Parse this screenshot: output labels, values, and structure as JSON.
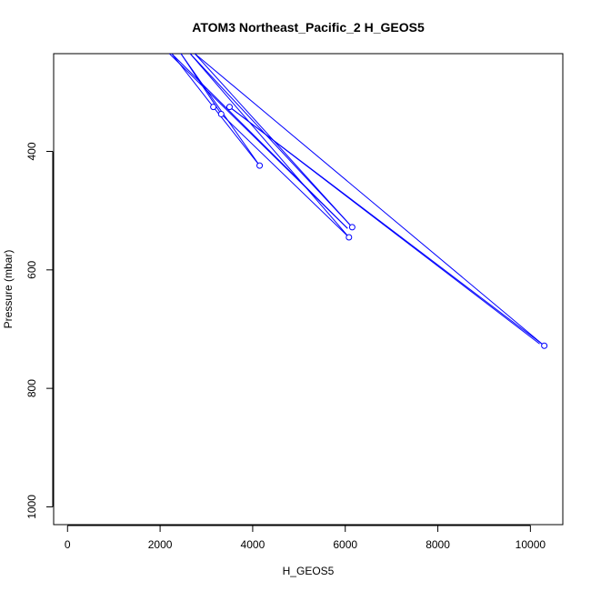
{
  "chart_data": {
    "type": "line",
    "title": "ATOM3 Northeast_Pacific_2 H_GEOS5",
    "xlabel": "H_GEOS5",
    "ylabel": "Pressure (mbar)",
    "xlim": [
      -300,
      10700
    ],
    "ylim": [
      1030,
      235
    ],
    "y_reversed": true,
    "grid": false,
    "x_ticks": [
      0,
      2000,
      4000,
      6000,
      8000,
      10000
    ],
    "x_tick_labels": [
      "0",
      "2000",
      "4000",
      "6000",
      "8000",
      "10000"
    ],
    "y_ticks": [
      400,
      600,
      800,
      1000
    ],
    "y_tick_labels": [
      "400",
      "600",
      "800",
      "1000"
    ],
    "series": [
      {
        "color": "#0000ff",
        "marker": "circle-open",
        "points": [
          {
            "x": 2200,
            "y": 235
          },
          {
            "x": 6050,
            "y": 530
          },
          {
            "x": 2250,
            "y": 235
          },
          {
            "x": 3150,
            "y": 325
          },
          {
            "x": 4150,
            "y": 424
          },
          {
            "x": 2450,
            "y": 235
          },
          {
            "x": 3320,
            "y": 337
          },
          {
            "x": 6080,
            "y": 545
          },
          {
            "x": 2650,
            "y": 235
          },
          {
            "x": 6150,
            "y": 528
          },
          {
            "x": 2750,
            "y": 235
          },
          {
            "x": 10300,
            "y": 728
          },
          {
            "x": 3500,
            "y": 325
          },
          {
            "x": 10200,
            "y": 725
          }
        ],
        "marked_points": [
          {
            "x": 3150,
            "y": 325
          },
          {
            "x": 3500,
            "y": 325
          },
          {
            "x": 3320,
            "y": 337
          },
          {
            "x": 4150,
            "y": 424
          },
          {
            "x": 6150,
            "y": 528
          },
          {
            "x": 6080,
            "y": 545
          },
          {
            "x": 10300,
            "y": 728
          }
        ]
      }
    ]
  }
}
